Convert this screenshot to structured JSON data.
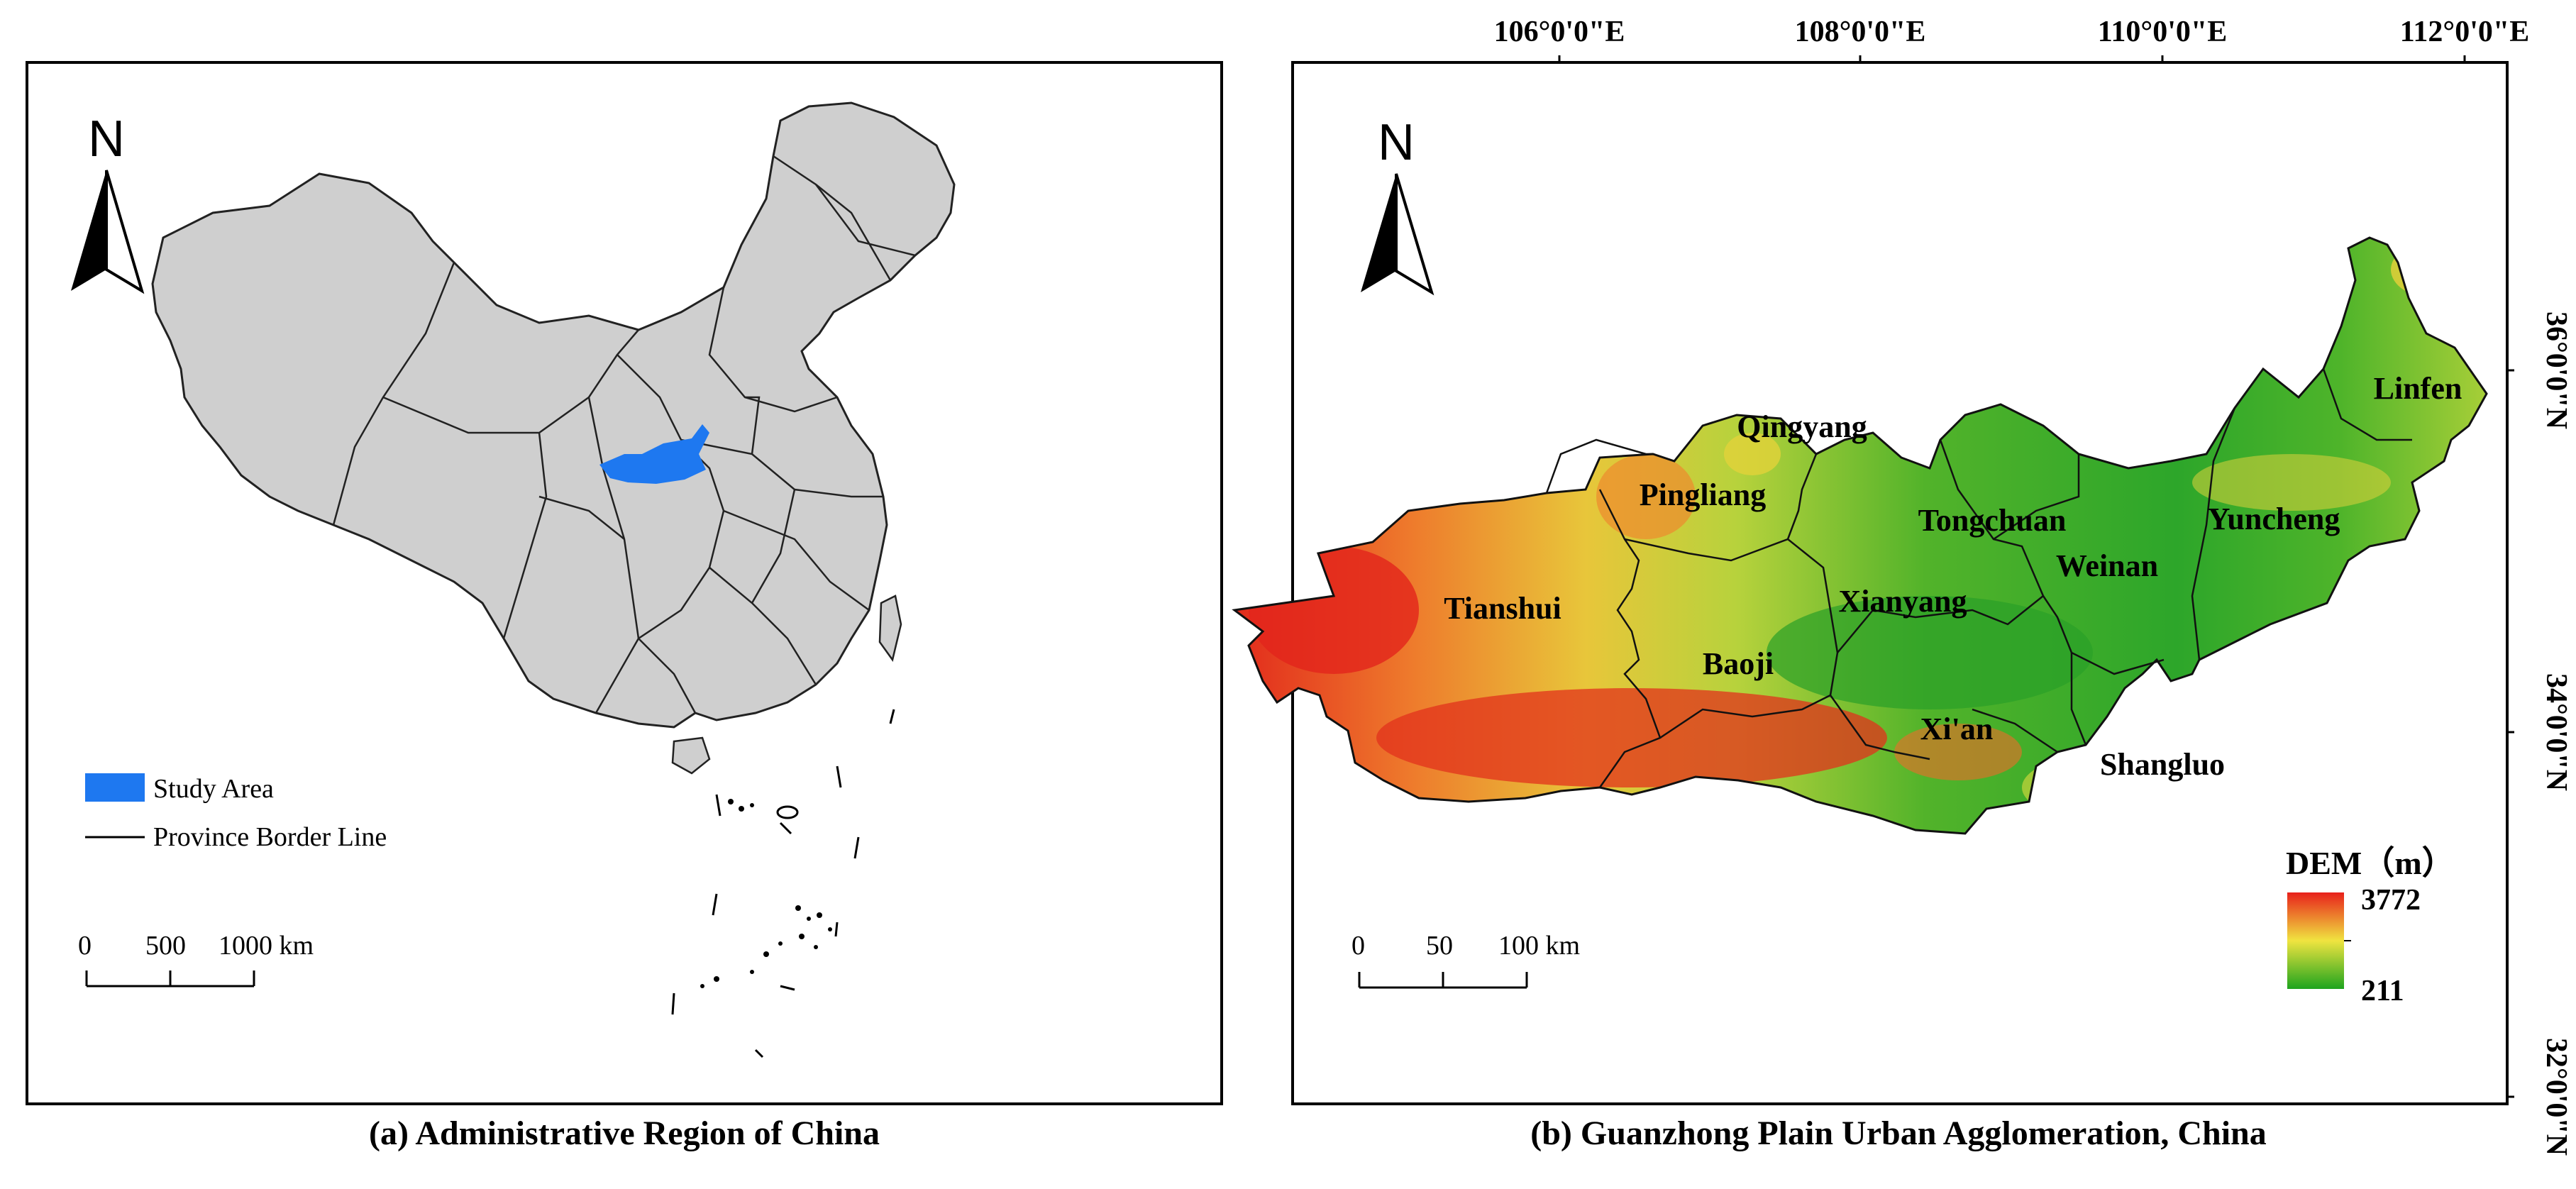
{
  "panel_a": {
    "caption": "(a) Administrative Region of China",
    "north_label": "N",
    "legend": {
      "study_area": "Study Area",
      "province_border": "Province Border Line"
    },
    "scale": {
      "ticks": [
        "0",
        "500",
        "1000 km"
      ]
    },
    "colors": {
      "land": "#cfcfcf",
      "study_area": "#1e78f0"
    }
  },
  "panel_b": {
    "caption": "(b) Guanzhong Plain Urban Agglomeration, China",
    "north_label": "N",
    "longitudes": [
      "106°0'0\"E",
      "108°0'0\"E",
      "110°0'0\"E",
      "112°0'0\"E"
    ],
    "latitudes": [
      "36°0'0\"N",
      "34°0'0\"N",
      "32°0'0\"N"
    ],
    "cities": [
      "Qingyang",
      "Pingliang",
      "Tongchuan",
      "Yuncheng",
      "Linfen",
      "Tianshui",
      "Xianyang",
      "Weinan",
      "Baoji",
      "Xi'an",
      "Shangluo"
    ],
    "scale": {
      "ticks": [
        "0",
        "50",
        "100 km"
      ]
    },
    "dem_legend": {
      "title": "DEM（m）",
      "max": "3772",
      "min": "211"
    },
    "colors": {
      "high": "#e8211b",
      "mid": "#f0e440",
      "low": "#1ea41e"
    }
  }
}
